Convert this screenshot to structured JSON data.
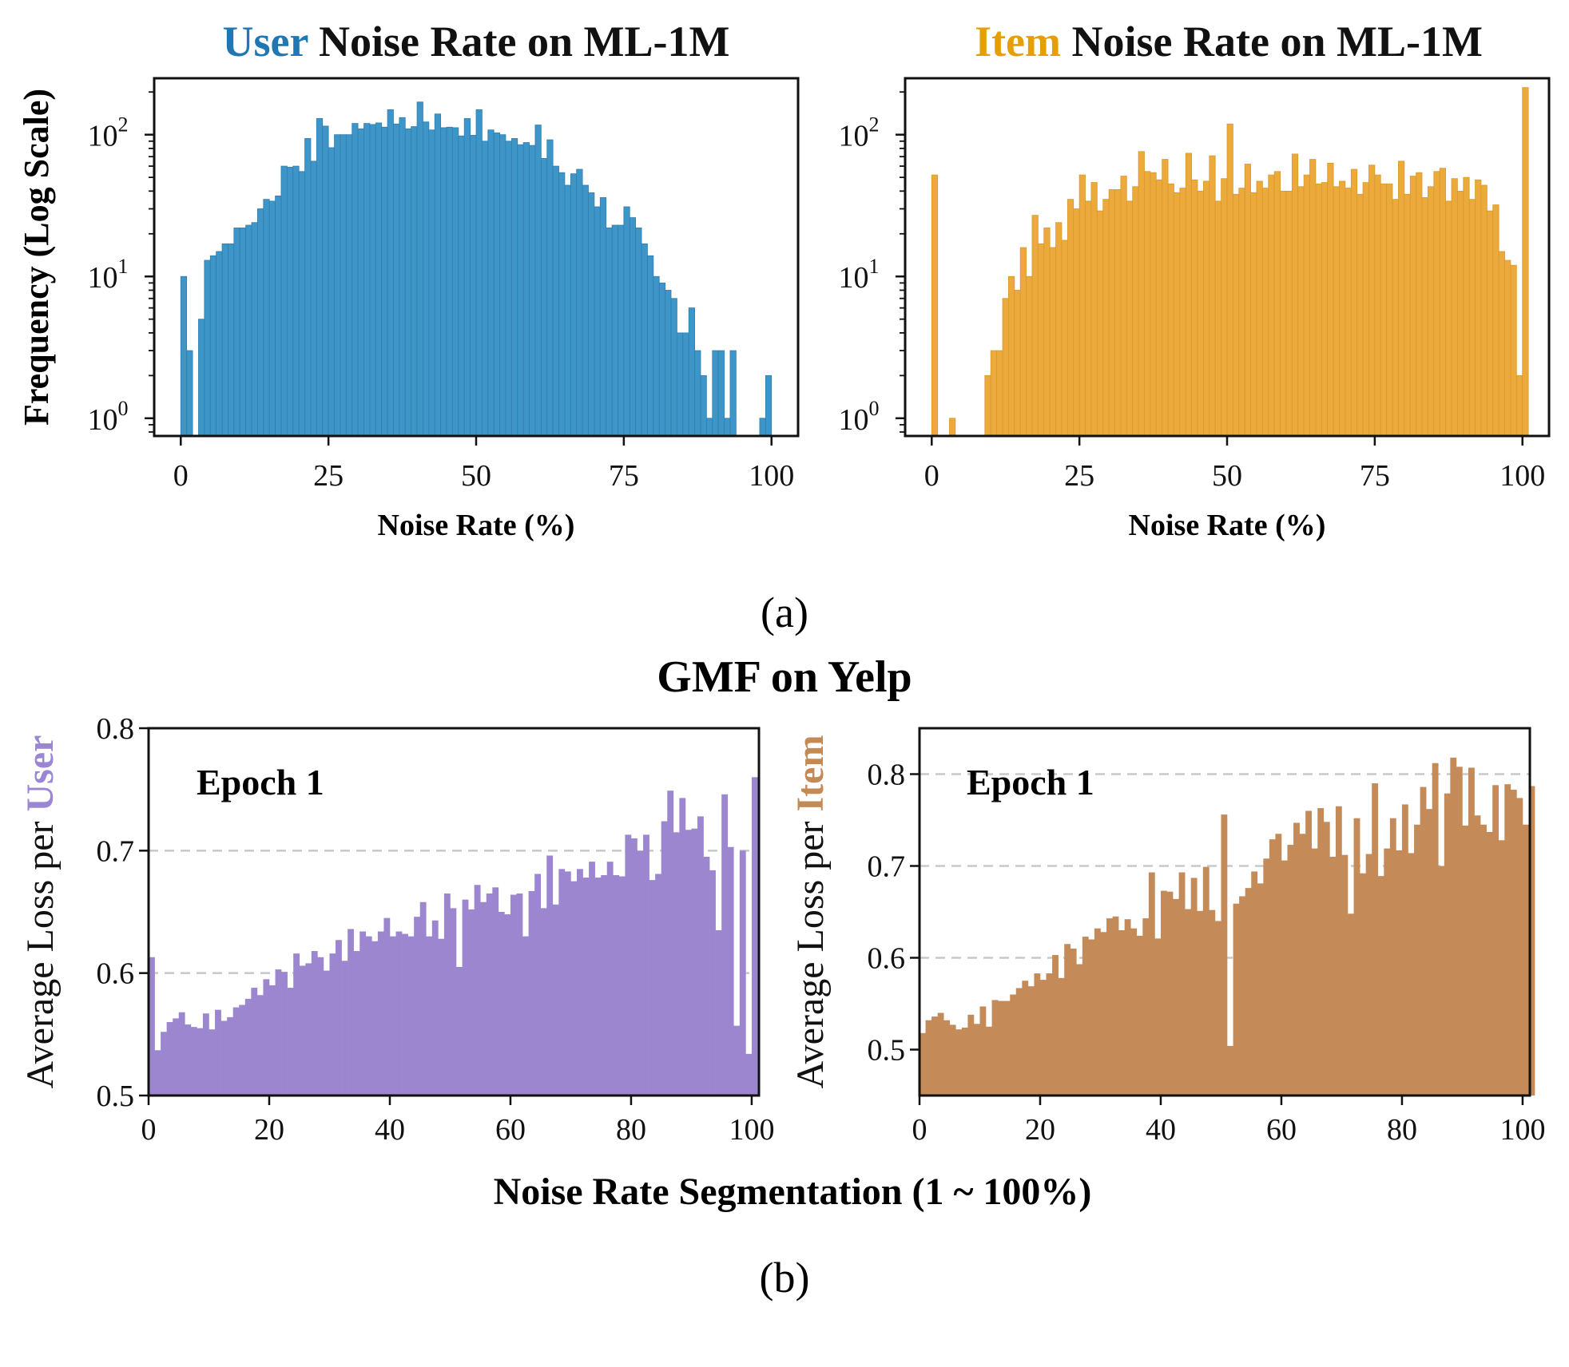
{
  "figure": {
    "caption_a": "(a)",
    "caption_b": "(b)",
    "suptitle_b": "GMF on Yelp",
    "supxlabel_b": "Noise Rate Segmentation (1 ~ 100%)"
  },
  "chart_data": [
    {
      "id": "user_noise",
      "type": "bar",
      "title_highlight": "User",
      "title_rest": " Noise Rate on ML-1M",
      "highlight_color": "#1F77B4",
      "bar_color": "#3D95C8",
      "bar_edge": "#2F7FB0",
      "xlabel": "Noise Rate (%)",
      "ylabel": "Frequency (Log Scale)",
      "yscale": "log",
      "ylim": [
        0.75,
        250
      ],
      "xlim": [
        -4.5,
        104.5
      ],
      "xticks": [
        "0",
        "25",
        "50",
        "75",
        "100"
      ],
      "ytick_exponents": [
        "0",
        "1",
        "2"
      ],
      "bin_width": 1,
      "values": [
        10,
        3,
        0,
        5,
        13,
        14,
        15,
        17,
        17,
        22,
        22,
        23,
        24,
        30,
        35,
        34,
        37,
        60,
        59,
        60,
        55,
        94,
        65,
        130,
        115,
        81,
        100,
        100,
        100,
        120,
        110,
        120,
        118,
        121,
        113,
        150,
        119,
        132,
        110,
        114,
        170,
        123,
        108,
        140,
        112,
        113,
        112,
        98,
        130,
        99,
        150,
        90,
        108,
        103,
        100,
        90,
        94,
        85,
        88,
        84,
        117,
        68,
        92,
        60,
        54,
        44,
        53,
        57,
        44,
        39,
        31,
        36,
        22,
        23,
        23,
        31,
        26,
        22,
        17,
        14,
        10,
        9,
        8,
        7,
        4,
        4,
        6,
        3,
        2,
        1,
        3,
        3,
        1,
        3,
        0,
        0,
        0,
        0,
        1,
        2
      ]
    },
    {
      "id": "item_noise",
      "type": "bar",
      "title_highlight": "Item",
      "title_rest": " Noise Rate on ML-1M",
      "highlight_color": "#E69F00",
      "bar_color": "#EBAA3B",
      "bar_edge": "#D99A2B",
      "xlabel": "Noise Rate (%)",
      "ylabel": "",
      "yscale": "log",
      "ylim": [
        0.75,
        250
      ],
      "xlim": [
        -4.5,
        104.5
      ],
      "xticks": [
        "0",
        "25",
        "50",
        "75",
        "100"
      ],
      "ytick_exponents": [
        "0",
        "1",
        "2"
      ],
      "bin_width": 1,
      "values": [
        52,
        0,
        0,
        1,
        0,
        0,
        0,
        0,
        0,
        2,
        3,
        3,
        7,
        10,
        8,
        16,
        10,
        27,
        17,
        22,
        16,
        24,
        18,
        35,
        30,
        52,
        34,
        46,
        29,
        35,
        41,
        41,
        51,
        34,
        43,
        76,
        55,
        54,
        48,
        67,
        45,
        39,
        42,
        74,
        48,
        40,
        47,
        71,
        34,
        49,
        119,
        38,
        42,
        62,
        39,
        47,
        42,
        52,
        55,
        40,
        40,
        73,
        43,
        52,
        67,
        45,
        46,
        63,
        43,
        47,
        42,
        57,
        38,
        46,
        61,
        52,
        45,
        45,
        35,
        65,
        38,
        51,
        54,
        36,
        43,
        55,
        58,
        34,
        49,
        40,
        50,
        35,
        48,
        44,
        29,
        32,
        15,
        13,
        12,
        2,
        215
      ]
    },
    {
      "id": "user_loss",
      "type": "bar",
      "title": "",
      "annotation": "Epoch 1",
      "ylabel_prefix": "Average Loss per ",
      "ylabel_highlight": "User",
      "highlight_color": "#9B86D4",
      "bar_color": "#9C86D0",
      "ylim": [
        0.5,
        0.8
      ],
      "xlim": [
        0,
        101.2
      ],
      "yticks": [
        "0.5",
        "0.6",
        "0.7",
        "0.8"
      ],
      "xticks": [
        "0",
        "20",
        "40",
        "60",
        "80",
        "100"
      ],
      "grid": "dashed horizontal",
      "values": [
        0.613,
        0.537,
        0.552,
        0.56,
        0.563,
        0.568,
        0.558,
        0.556,
        0.555,
        0.567,
        0.554,
        0.57,
        0.561,
        0.564,
        0.572,
        0.574,
        0.579,
        0.588,
        0.582,
        0.595,
        0.59,
        0.603,
        0.601,
        0.588,
        0.616,
        0.606,
        0.608,
        0.618,
        0.613,
        0.602,
        0.616,
        0.627,
        0.61,
        0.636,
        0.618,
        0.634,
        0.63,
        0.626,
        0.634,
        0.645,
        0.63,
        0.634,
        0.632,
        0.63,
        0.646,
        0.658,
        0.63,
        0.643,
        0.628,
        0.665,
        0.653,
        0.605,
        0.66,
        0.652,
        0.672,
        0.658,
        0.665,
        0.67,
        0.65,
        0.648,
        0.664,
        0.665,
        0.63,
        0.667,
        0.681,
        0.653,
        0.696,
        0.656,
        0.685,
        0.683,
        0.675,
        0.685,
        0.678,
        0.691,
        0.678,
        0.68,
        0.691,
        0.68,
        0.679,
        0.713,
        0.71,
        0.7,
        0.713,
        0.676,
        0.681,
        0.724,
        0.749,
        0.715,
        0.743,
        0.717,
        0.718,
        0.728,
        0.695,
        0.684,
        0.635,
        0.746,
        0.703,
        0.557,
        0.7,
        0.534,
        0.76
      ]
    },
    {
      "id": "item_loss",
      "type": "bar",
      "title": "",
      "annotation": "Epoch 1",
      "ylabel_prefix": "Average Loss per ",
      "ylabel_highlight": "Item",
      "highlight_color": "#C48A55",
      "bar_color": "#C48A58",
      "ylim": [
        0.45,
        0.85
      ],
      "xlim": [
        0,
        101.2
      ],
      "yticks": [
        "0.5",
        "0.6",
        "0.7",
        "0.8"
      ],
      "xticks": [
        "0",
        "20",
        "40",
        "60",
        "80",
        "100"
      ],
      "grid": "dashed horizontal",
      "values": [
        0.518,
        0.532,
        0.536,
        0.54,
        0.532,
        0.527,
        0.522,
        0.524,
        0.538,
        0.528,
        0.547,
        0.525,
        0.554,
        0.553,
        0.553,
        0.56,
        0.567,
        0.575,
        0.569,
        0.583,
        0.576,
        0.583,
        0.603,
        0.578,
        0.615,
        0.61,
        0.593,
        0.623,
        0.62,
        0.632,
        0.628,
        0.643,
        0.645,
        0.63,
        0.642,
        0.632,
        0.624,
        0.643,
        0.693,
        0.621,
        0.673,
        0.672,
        0.664,
        0.693,
        0.653,
        0.687,
        0.651,
        0.699,
        0.652,
        0.64,
        0.756,
        0.504,
        0.659,
        0.667,
        0.676,
        0.694,
        0.681,
        0.708,
        0.729,
        0.735,
        0.706,
        0.723,
        0.747,
        0.735,
        0.76,
        0.719,
        0.763,
        0.748,
        0.71,
        0.765,
        0.712,
        0.648,
        0.752,
        0.692,
        0.713,
        0.79,
        0.689,
        0.719,
        0.752,
        0.717,
        0.767,
        0.714,
        0.745,
        0.786,
        0.762,
        0.812,
        0.7,
        0.779,
        0.818,
        0.808,
        0.744,
        0.807,
        0.755,
        0.745,
        0.737,
        0.788,
        0.728,
        0.789,
        0.783,
        0.774,
        0.745,
        0.787
      ]
    }
  ]
}
